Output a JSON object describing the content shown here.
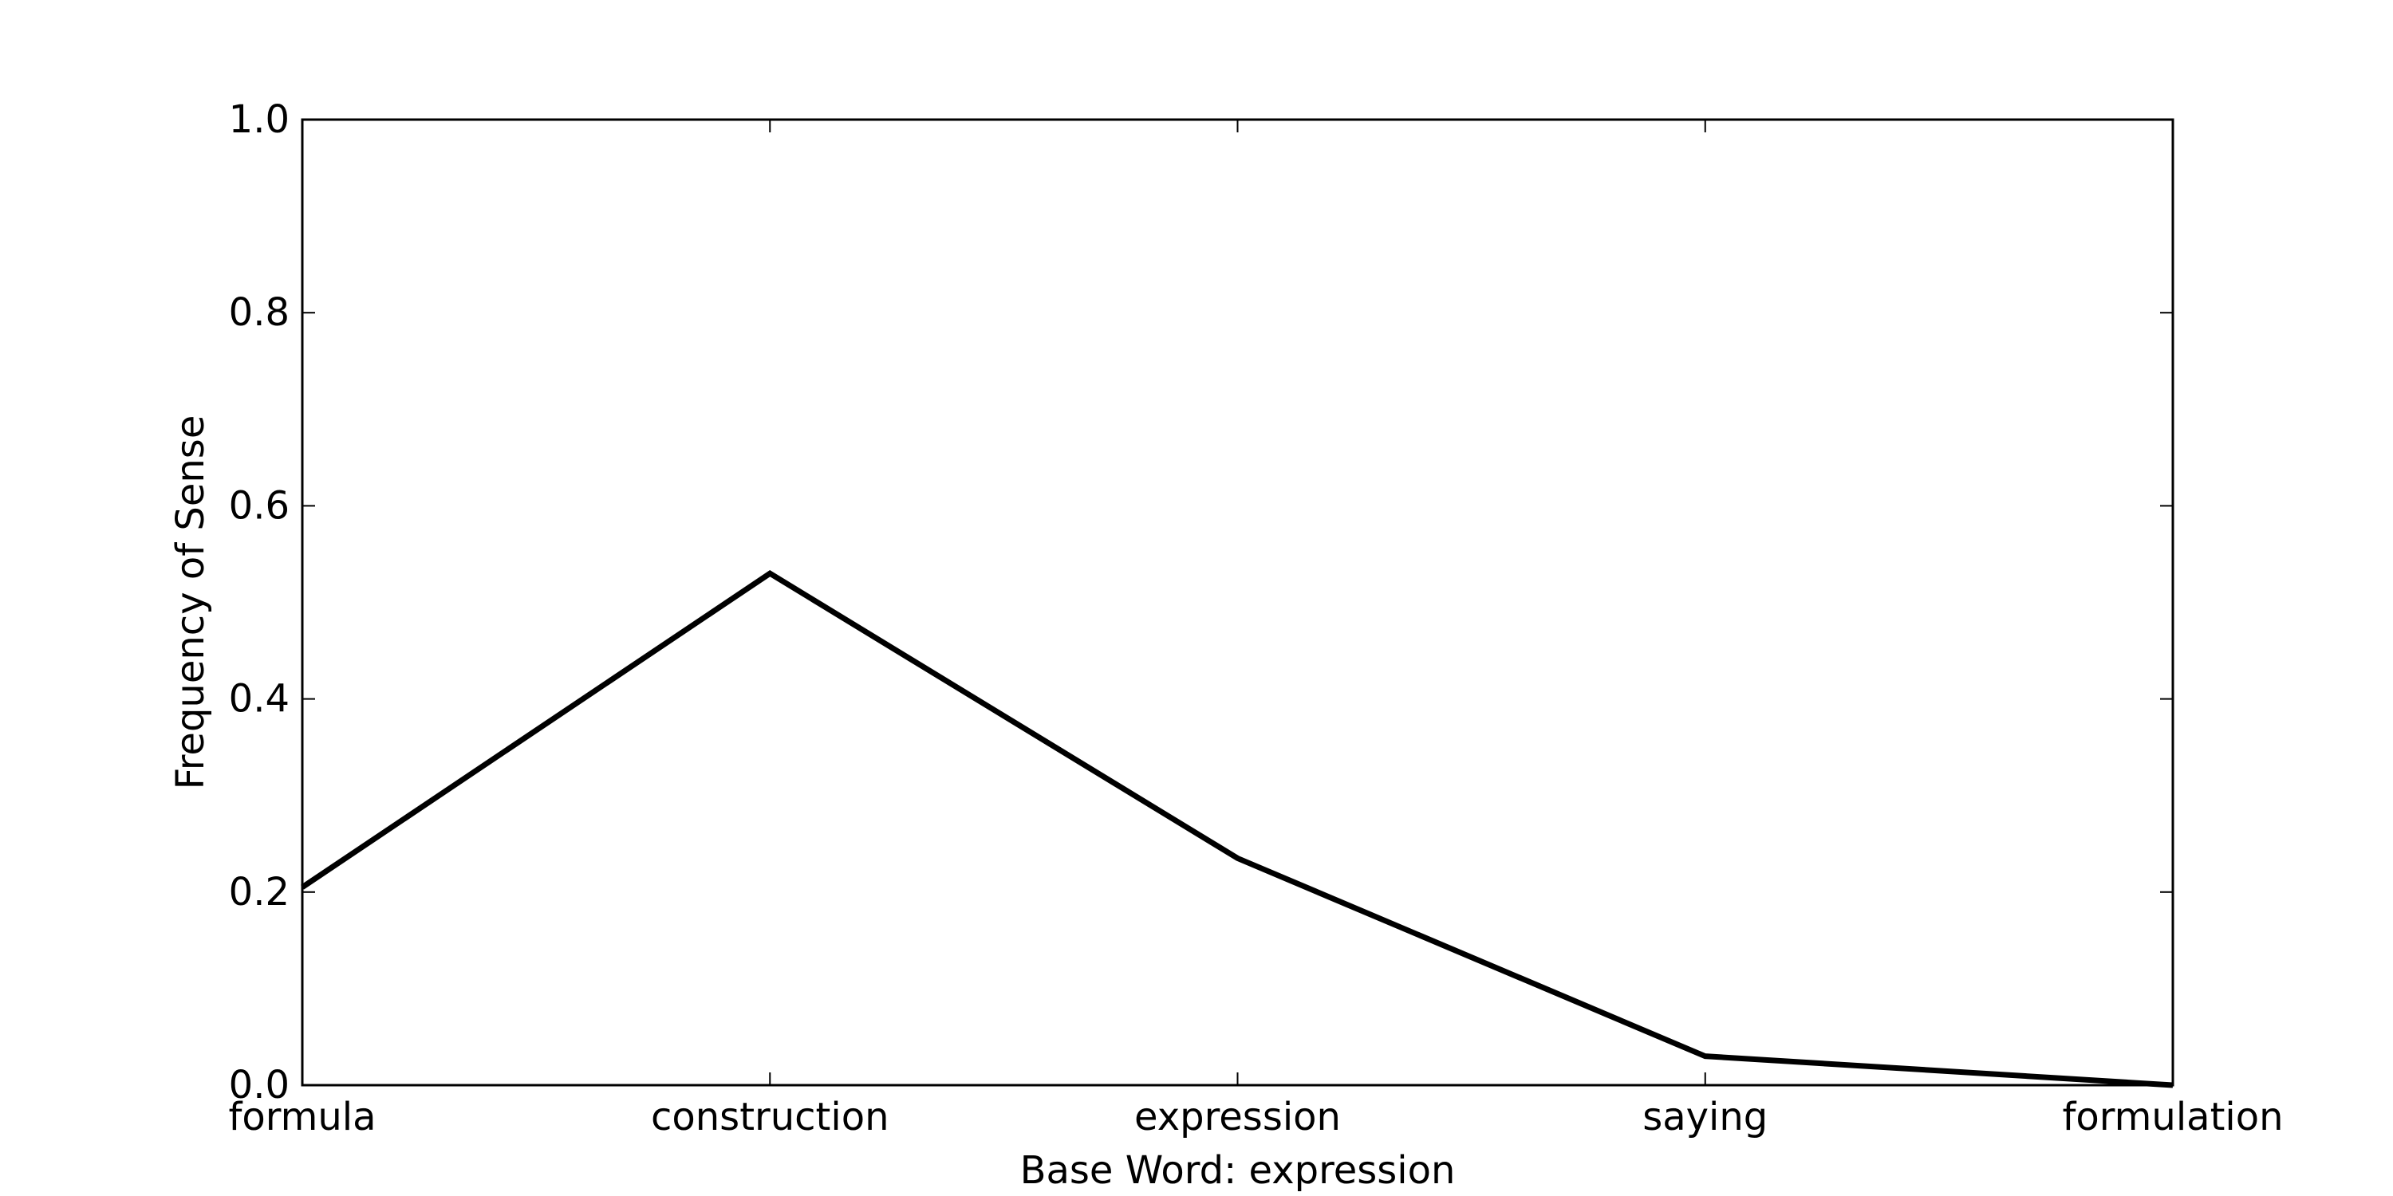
{
  "chart_data": {
    "type": "line",
    "categories": [
      "formula",
      "construction",
      "expression",
      "saying",
      "formulation"
    ],
    "series": [
      {
        "values": [
          0.205,
          0.53,
          0.235,
          0.03,
          0.0
        ]
      }
    ],
    "xlabel": "Base Word: expression",
    "ylabel": "Frequency of Sense",
    "ylim": [
      0,
      1.0
    ],
    "yticks": [
      "0.0",
      "0.2",
      "0.4",
      "0.6",
      "0.8",
      "1.0"
    ],
    "grid": false,
    "line_color": "#000000"
  }
}
